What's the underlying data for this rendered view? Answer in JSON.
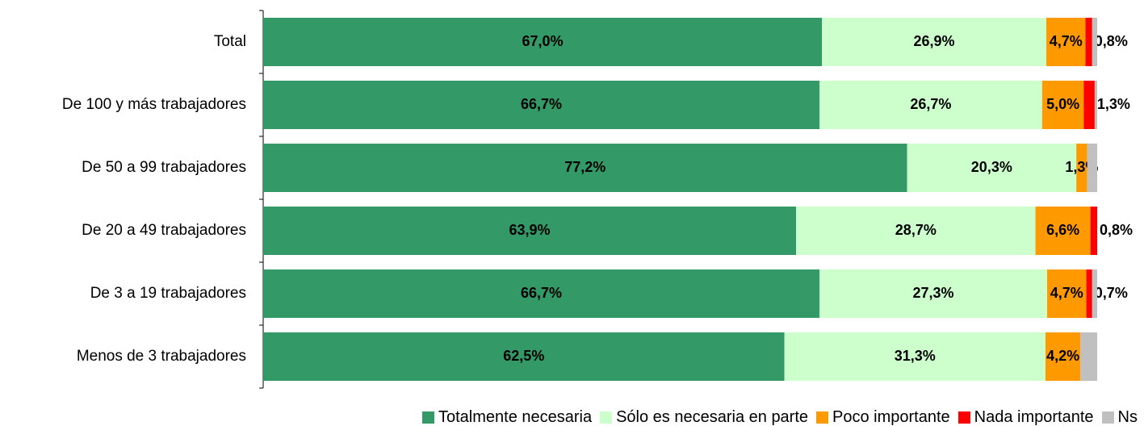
{
  "chart_data": {
    "type": "stacked-barh",
    "categories": [
      "Total",
      "De 100 y más trabajadores",
      "De 50 a 99 trabajadores",
      "De 20 a 49 trabajadores",
      "De 3 a 19 trabajadores",
      "Menos de 3 trabajadores"
    ],
    "series": [
      {
        "name": "Totalmente necesaria",
        "color": "#339966",
        "values": [
          67.0,
          66.7,
          77.2,
          63.9,
          66.7,
          62.5
        ],
        "value_labels": [
          "67,0%",
          "66,7%",
          "77,2%",
          "63,9%",
          "66,7%",
          "62,5%"
        ]
      },
      {
        "name": "Sólo es necesaria en parte",
        "color": "#ccffcc",
        "values": [
          26.9,
          26.7,
          20.3,
          28.7,
          27.3,
          31.3
        ],
        "value_labels": [
          "26,9%",
          "26,7%",
          "20,3%",
          "28,7%",
          "27,3%",
          "31,3%"
        ]
      },
      {
        "name": "Poco importante",
        "color": "#ff9900",
        "values": [
          4.7,
          5.0,
          1.3,
          6.6,
          4.7,
          4.2
        ],
        "value_labels": [
          "4,7%",
          "5,0%",
          "1,3%",
          "6,6%",
          "4,7%",
          "4,2%"
        ]
      },
      {
        "name": "Nada importante",
        "color": "#ff0000",
        "values": [
          0.8,
          1.3,
          0,
          0.8,
          0.7,
          0
        ],
        "value_labels": [
          "0,8%",
          "1,3%",
          null,
          "0,8%",
          "0,7%",
          null
        ]
      },
      {
        "name": "Ns",
        "color": "#c0c0c0",
        "values": [
          0.6,
          0.3,
          1.2,
          0,
          0.6,
          2.0
        ],
        "value_labels": [
          null,
          null,
          null,
          null,
          null,
          null
        ]
      }
    ],
    "xlim": [
      0,
      100
    ]
  }
}
